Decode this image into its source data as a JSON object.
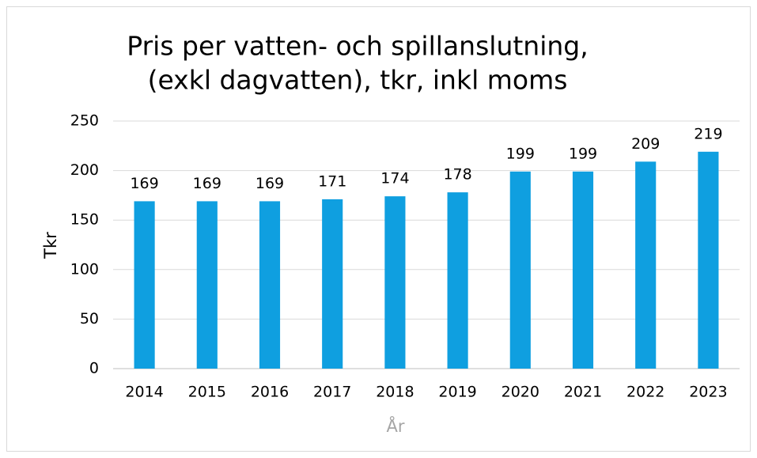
{
  "chart_data": {
    "type": "bar",
    "title": [
      "Pris per vatten- och spillanslutning,",
      "(exkl dagvatten), tkr, inkl moms"
    ],
    "x_label": "År",
    "y_label": "Tkr",
    "categories": [
      "2014",
      "2015",
      "2016",
      "2017",
      "2018",
      "2019",
      "2020",
      "2021",
      "2022",
      "2023"
    ],
    "values": [
      169,
      169,
      169,
      171,
      174,
      178,
      199,
      199,
      209,
      219
    ],
    "color": "#0f9fe0",
    "ylim": [
      0,
      250
    ],
    "yticks": [
      0,
      50,
      100,
      150,
      200,
      250
    ],
    "grid": true
  }
}
